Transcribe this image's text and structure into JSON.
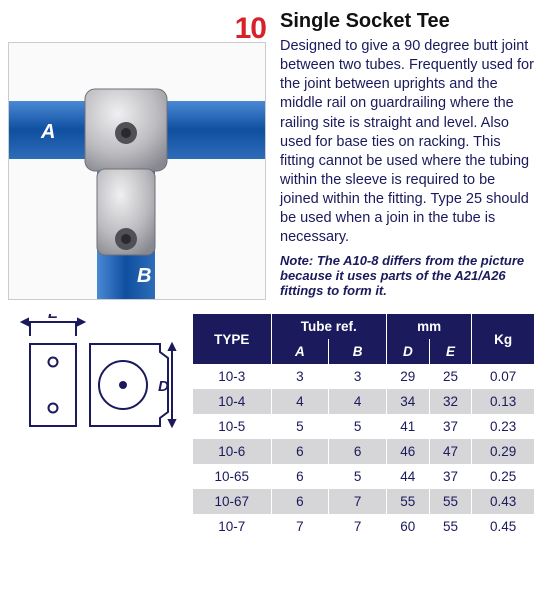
{
  "product_number": "10",
  "title": "Single Socket Tee",
  "description": "Designed to give a 90 degree butt joint between two tubes. Frequently used for the joint between uprights and the middle rail on guardrailing where the railing site is straight and level. Also used for base ties on racking. This fitting cannot be used where the tubing within the sleeve is required to be joined within the fitting. Type 25 should be used when a join in the tube is necessary.",
  "note": "Note: The A10-8 differs from the picture because it uses parts of the A21/A26 fittings to form it.",
  "image": {
    "label_A": "A",
    "label_B": "B",
    "tube_color": "#1d62b8",
    "fitting_light": "#d8d8da",
    "fitting_dark": "#8a8a8e"
  },
  "diagram": {
    "label_E": "E",
    "label_D": "D",
    "stroke": "#1a1a5c",
    "stroke_width": 2
  },
  "table": {
    "header_bg": "#1a1a5c",
    "header_fg": "#ffffff",
    "row_even_bg": "#d6d6d8",
    "row_odd_bg": "#ffffff",
    "text_color": "#1a1a5c",
    "columns": {
      "type": "TYPE",
      "tuberef": "Tube ref.",
      "A": "A",
      "B": "B",
      "mm": "mm",
      "D": "D",
      "E": "E",
      "kg": "Kg"
    },
    "rows": [
      {
        "type": "10-3",
        "A": "3",
        "B": "3",
        "D": "29",
        "E": "25",
        "kg": "0.07"
      },
      {
        "type": "10-4",
        "A": "4",
        "B": "4",
        "D": "34",
        "E": "32",
        "kg": "0.13"
      },
      {
        "type": "10-5",
        "A": "5",
        "B": "5",
        "D": "41",
        "E": "37",
        "kg": "0.23"
      },
      {
        "type": "10-6",
        "A": "6",
        "B": "6",
        "D": "46",
        "E": "47",
        "kg": "0.29"
      },
      {
        "type": "10-65",
        "A": "6",
        "B": "5",
        "D": "44",
        "E": "37",
        "kg": "0.25"
      },
      {
        "type": "10-67",
        "A": "6",
        "B": "7",
        "D": "55",
        "E": "55",
        "kg": "0.43"
      },
      {
        "type": "10-7",
        "A": "7",
        "B": "7",
        "D": "60",
        "E": "55",
        "kg": "0.45"
      }
    ]
  }
}
